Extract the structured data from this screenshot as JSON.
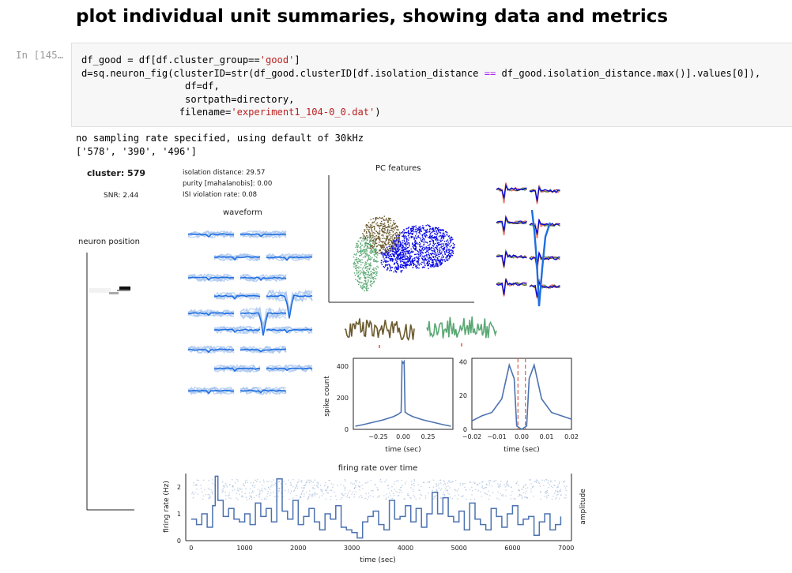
{
  "notebook": {
    "heading": "plot individual unit summaries, showing data and metrics",
    "prompt": "In [145…",
    "code_lines": [
      [
        {
          "t": "df_good = df[df.cluster_group=="
        },
        {
          "t": "'good'",
          "c": "str"
        },
        {
          "t": "]"
        }
      ],
      [
        {
          "t": "d=sq.neuron_fig(clusterID=str(df_good.clusterID[df.isolation_distance "
        },
        {
          "t": "==",
          "c": "op"
        },
        {
          "t": " df_good.isolation_distance.max()].values[0]),"
        }
      ],
      [
        {
          "t": "                  df=df,"
        }
      ],
      [
        {
          "t": "                  sortpath=directory,"
        }
      ],
      [
        {
          "t": "                 filename="
        },
        {
          "t": "'experiment1_104-0_0.dat'",
          "c": "str"
        },
        {
          "t": ")"
        }
      ]
    ],
    "stdout_lines": [
      "no sampling rate specified, using default of 30kHz",
      "['578', '390', '496']"
    ]
  },
  "figure": {
    "cluster_label": "cluster: 579",
    "snr_label": "SNR: 2.44",
    "metrics": [
      "isolation distance: 29.57",
      "purity [mahalanobis]: 0.00",
      "ISI violation rate: 0.08"
    ],
    "waveform_title": "waveform",
    "neuron_position_title": "neuron position",
    "pc_title": "PC features",
    "colors": {
      "unit_blue": "#1f6fe0",
      "pc_blue": "#0000e6",
      "olive": "#6b5a2e",
      "green": "#5aa874",
      "salmon": "#f07a73",
      "line_blue": "#4c72b0",
      "dash_red": "#e05a4a"
    }
  },
  "chart_data": [
    {
      "type": "line",
      "title": "",
      "xlabel": "time (sec)",
      "ylabel": "spike count",
      "x_ticks": [
        "−0.25",
        "0.00",
        "0.25"
      ],
      "y_ticks": [
        "0",
        "200",
        "400"
      ],
      "xlim": [
        -0.5,
        0.5
      ],
      "ylim": [
        0,
        450
      ],
      "series": [
        {
          "x": [
            -0.48,
            -0.4,
            -0.3,
            -0.2,
            -0.1,
            -0.05,
            -0.02,
            -0.01,
            0,
            0.01,
            0.02,
            0.05,
            0.1,
            0.2,
            0.3,
            0.4,
            0.48
          ],
          "y": [
            20,
            30,
            45,
            60,
            80,
            95,
            110,
            430,
            420,
            430,
            110,
            95,
            80,
            60,
            45,
            30,
            20
          ]
        }
      ]
    },
    {
      "type": "line",
      "title": "",
      "xlabel": "time (sec)",
      "ylabel": "",
      "x_ticks": [
        "−0.02",
        "−0.01",
        "0.00",
        "0.01",
        "0.02"
      ],
      "y_ticks": [
        "0",
        "20",
        "40"
      ],
      "xlim": [
        -0.02,
        0.02
      ],
      "ylim": [
        0,
        42
      ],
      "series": [
        {
          "x": [
            -0.02,
            -0.016,
            -0.012,
            -0.008,
            -0.005,
            -0.003,
            -0.002,
            -0.001,
            0,
            0.001,
            0.002,
            0.003,
            0.005,
            0.008,
            0.012,
            0.016,
            0.02
          ],
          "y": [
            5,
            8,
            10,
            18,
            38,
            30,
            2,
            1,
            0,
            1,
            2,
            30,
            38,
            18,
            10,
            8,
            6
          ]
        }
      ],
      "refractory_lines": [
        -0.0015,
        0.0015
      ]
    },
    {
      "type": "line",
      "title": "firing rate over time",
      "xlabel": "time (sec)",
      "ylabel": "firing rate (Hz)",
      "ylabel_right": "amplitude",
      "x_ticks": [
        "0",
        "1000",
        "2000",
        "3000",
        "4000",
        "5000",
        "6000",
        "7000"
      ],
      "y_ticks": [
        "0",
        "1",
        "2"
      ],
      "xlim": [
        -100,
        7100
      ],
      "ylim": [
        0,
        2.5
      ],
      "series": [
        {
          "x": [
            0,
            100,
            200,
            300,
            400,
            450,
            500,
            600,
            700,
            800,
            900,
            1000,
            1100,
            1200,
            1300,
            1400,
            1500,
            1600,
            1700,
            1800,
            1900,
            2000,
            2100,
            2200,
            2300,
            2400,
            2500,
            2600,
            2700,
            2800,
            2900,
            3000,
            3100,
            3200,
            3300,
            3400,
            3500,
            3600,
            3700,
            3800,
            3900,
            4000,
            4100,
            4200,
            4300,
            4400,
            4500,
            4600,
            4700,
            4800,
            4900,
            5000,
            5100,
            5200,
            5300,
            5400,
            5500,
            5600,
            5700,
            5800,
            5900,
            6000,
            6100,
            6200,
            6300,
            6400,
            6500,
            6600,
            6700,
            6800,
            6900
          ],
          "y": [
            0.8,
            0.6,
            1.0,
            0.5,
            1.3,
            2.4,
            1.5,
            0.9,
            1.2,
            0.8,
            0.7,
            1.0,
            0.6,
            1.4,
            0.9,
            1.2,
            0.7,
            2.3,
            1.1,
            0.8,
            1.5,
            0.6,
            0.9,
            1.2,
            0.7,
            0.4,
            1.0,
            0.8,
            1.3,
            0.5,
            0.4,
            0.3,
            0.1,
            0.7,
            0.9,
            1.1,
            0.6,
            0.4,
            1.5,
            0.8,
            0.9,
            1.3,
            0.7,
            1.2,
            0.5,
            1.0,
            1.8,
            1.0,
            1.6,
            0.9,
            0.7,
            1.1,
            0.4,
            1.4,
            0.8,
            0.6,
            0.4,
            1.2,
            0.9,
            0.5,
            1.0,
            1.3,
            0.6,
            0.8,
            0.9,
            0.2,
            0.7,
            1.0,
            0.4,
            0.6,
            0.9
          ]
        }
      ],
      "amplitude_scatter": "dense light-blue scatter around 1.5–2.3"
    }
  ]
}
